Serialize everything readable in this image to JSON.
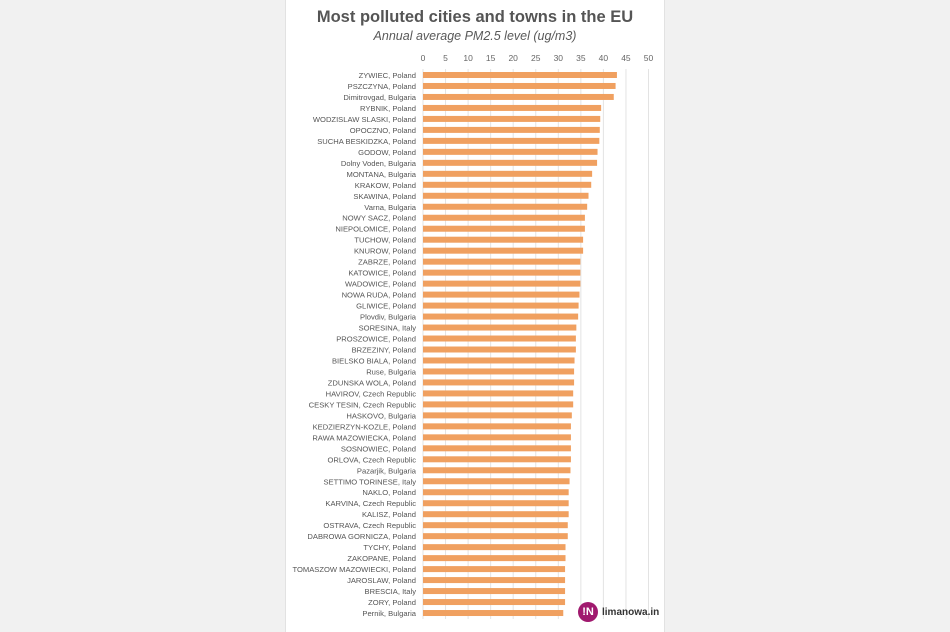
{
  "chart_data": {
    "type": "bar",
    "orientation": "horizontal",
    "title": "Most polluted cities and towns in the EU",
    "subtitle": "Annual average PM2.5 level (ug/m3)",
    "xlabel": "",
    "ylabel": "",
    "xlim": [
      0,
      50
    ],
    "xticks": [
      0,
      5,
      10,
      15,
      20,
      25,
      30,
      35,
      40,
      45,
      50
    ],
    "grid": true,
    "bar_color": "#f0a060",
    "categories": [
      "ZYWIEC, Poland",
      "PSZCZYNA, Poland",
      "Dimitrovgad, Bulgaria",
      "RYBNIK, Poland",
      "WODZISLAW SLASKI, Poland",
      "OPOCZNO, Poland",
      "SUCHA BESKIDZKA, Poland",
      "GODOW, Poland",
      "Dolny Voden, Bulgaria",
      "MONTANA, Bulgaria",
      "KRAKOW, Poland",
      "SKAWINA, Poland",
      "Varna, Bulgaria",
      "NOWY SACZ, Poland",
      "NIEPOLOMICE, Poland",
      "TUCHOW, Poland",
      "KNUROW, Poland",
      "ZABRZE, Poland",
      "KATOWICE, Poland",
      "WADOWICE, Poland",
      "NOWA RUDA, Poland",
      "GLIWICE, Poland",
      "Plovdiv, Bulgaria",
      "SORESINA, Italy",
      "PROSZOWICE, Poland",
      "BRZEZINY, Poland",
      "BIELSKO BIALA, Poland",
      "Ruse, Bulgaria",
      "ZDUNSKA WOLA, Poland",
      "HAVIROV, Czech Republic",
      "CESKY TESIN, Czech Republic",
      "HASKOVO, Bulgaria",
      "KEDZIERZYN-KOZLE, Poland",
      "RAWA MAZOWIECKA, Poland",
      "SOSNOWIEC, Poland",
      "ORLOVA, Czech Republic",
      "Pazarjik, Bulgaria",
      "SETTIMO TORINESE, Italy",
      "NAKLO, Poland",
      "KARVINA, Czech Republic",
      "KALISZ, Poland",
      "OSTRAVA, Czech Republic",
      "DABROWA GORNICZA, Poland",
      "TYCHY, Poland",
      "ZAKOPANE, Poland",
      "TOMASZOW MAZOWIECKI, Poland",
      "JAROSLAW, Poland",
      "BRESCIA, Italy",
      "ZORY, Poland",
      "Pernik, Bulgaria"
    ],
    "values": [
      43.0,
      42.7,
      42.3,
      39.5,
      39.3,
      39.2,
      39.1,
      38.7,
      38.6,
      37.5,
      37.3,
      36.7,
      36.4,
      35.9,
      35.9,
      35.5,
      35.5,
      34.9,
      34.9,
      34.9,
      34.7,
      34.5,
      34.4,
      34.0,
      33.9,
      33.9,
      33.6,
      33.5,
      33.5,
      33.3,
      33.3,
      33.0,
      32.8,
      32.8,
      32.8,
      32.8,
      32.7,
      32.5,
      32.3,
      32.3,
      32.3,
      32.1,
      32.1,
      31.6,
      31.6,
      31.5,
      31.5,
      31.5,
      31.5,
      31.1
    ]
  },
  "logo": {
    "badge": "!N",
    "text": "limanowa.in"
  }
}
